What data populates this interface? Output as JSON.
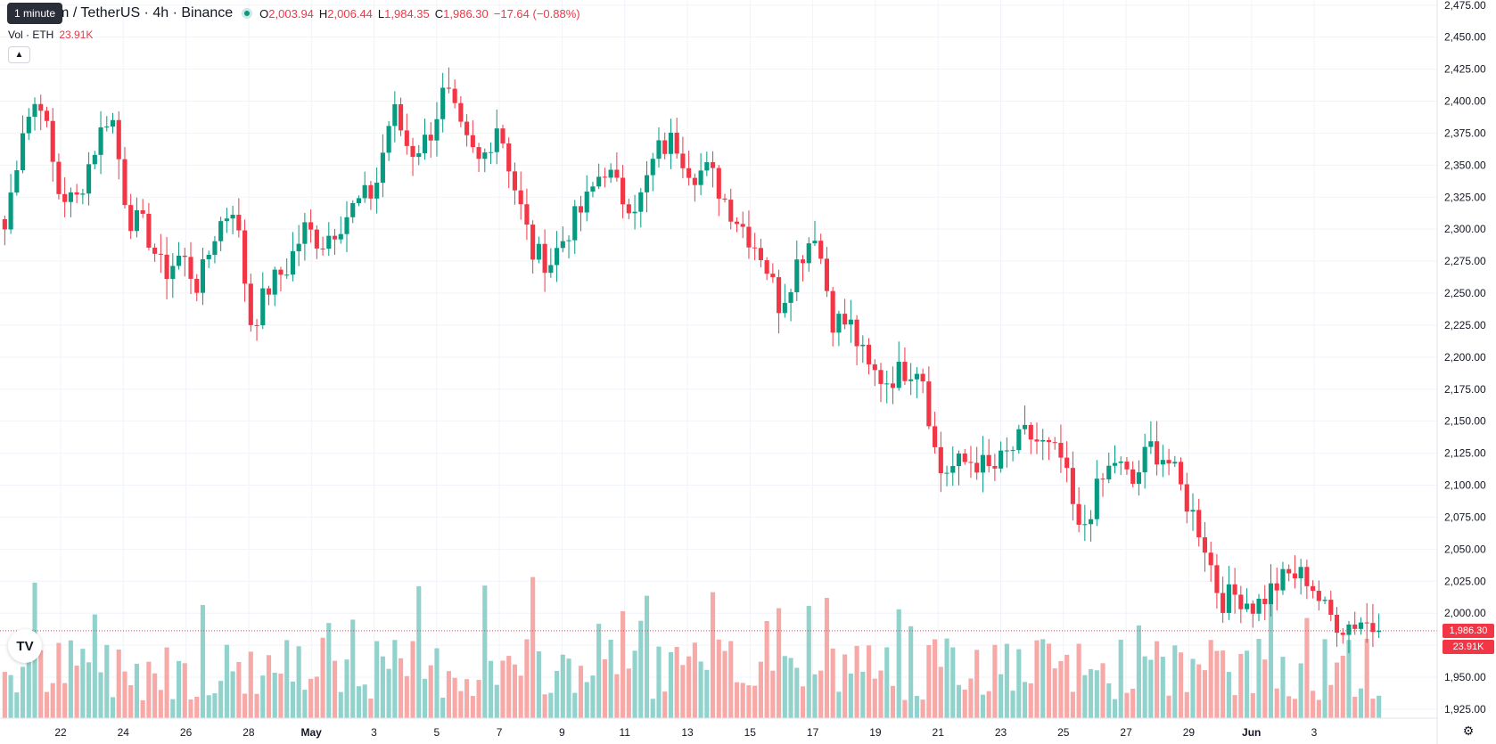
{
  "tooltip": "1 minute",
  "legend": {
    "symbol": "Ethereum / TetherUS · 4h · Binance",
    "open_label": "O",
    "open": "2,003.94",
    "high_label": "H",
    "high": "2,006.44",
    "low_label": "L",
    "low": "1,984.35",
    "close_label": "C",
    "close": "1,986.30",
    "change": "−17.64 (−0.88%)"
  },
  "volume": {
    "label": "Vol · ETH",
    "value": "23.91K",
    "tag": "23.91K"
  },
  "last_price_tag": "1,986.30",
  "logo_text": "TV",
  "icons": {
    "collapse": "chevron-up-icon",
    "settings": "gear-icon",
    "logo": "tradingview-logo-icon"
  },
  "colors": {
    "up": "#089981",
    "down": "#f23645",
    "vol_up": "#92d2cc",
    "vol_down": "#f7a9a7",
    "grid": "#f0f3fa"
  },
  "chart_data": {
    "type": "candlestick",
    "title": "Ethereum / TetherUS · 4h · Binance",
    "y_ticks": [
      "2,475.00",
      "2,450.00",
      "2,425.00",
      "2,400.00",
      "2,375.00",
      "2,350.00",
      "2,325.00",
      "2,300.00",
      "2,275.00",
      "2,250.00",
      "2,225.00",
      "2,200.00",
      "2,175.00",
      "2,150.00",
      "2,125.00",
      "2,100.00",
      "2,075.00",
      "2,050.00",
      "2,025.00",
      "2,000.00",
      "1,975.00",
      "1,950.00",
      "1,925.00"
    ],
    "ylim": [
      1918,
      2479
    ],
    "x_ticks": [
      "22",
      "24",
      "26",
      "28",
      "May",
      "3",
      "5",
      "7",
      "9",
      "11",
      "13",
      "15",
      "17",
      "19",
      "21",
      "23",
      "25",
      "27",
      "29",
      "Jun",
      "3"
    ],
    "last_price": 1986.3,
    "volume_last": "23.91K",
    "daily_path": [
      [
        2300,
        2380,
        2405,
        2330,
        2320,
        2360,
        2395,
        2310
      ],
      [
        2300,
        2265,
        2280,
        2255,
        2300,
        2320,
        2225,
        2255
      ],
      [
        2270,
        2300,
        2290,
        2305,
        2320,
        2330,
        2395,
        2360
      ],
      [
        2370,
        2410,
        2370,
        2350,
        2385,
        2330,
        2280,
        2275
      ],
      [
        2300,
        2320,
        2350,
        2325,
        2320,
        2360,
        2370,
        2345
      ],
      [
        2345,
        2320,
        2300,
        2280,
        2240,
        2275,
        2300,
        2230
      ],
      [
        2225,
        2190,
        2182,
        2190,
        2195,
        2110,
        2115,
        2120
      ],
      [
        2110,
        2125,
        2140,
        2130,
        2120,
        2060,
        2095,
        2120
      ],
      [
        2100,
        2130,
        2120,
        2090,
        2060,
        2010,
        2015,
        2005
      ],
      [
        2020,
        2030,
        2028,
        2000,
        1990,
        1995,
        1986
      ]
    ]
  }
}
